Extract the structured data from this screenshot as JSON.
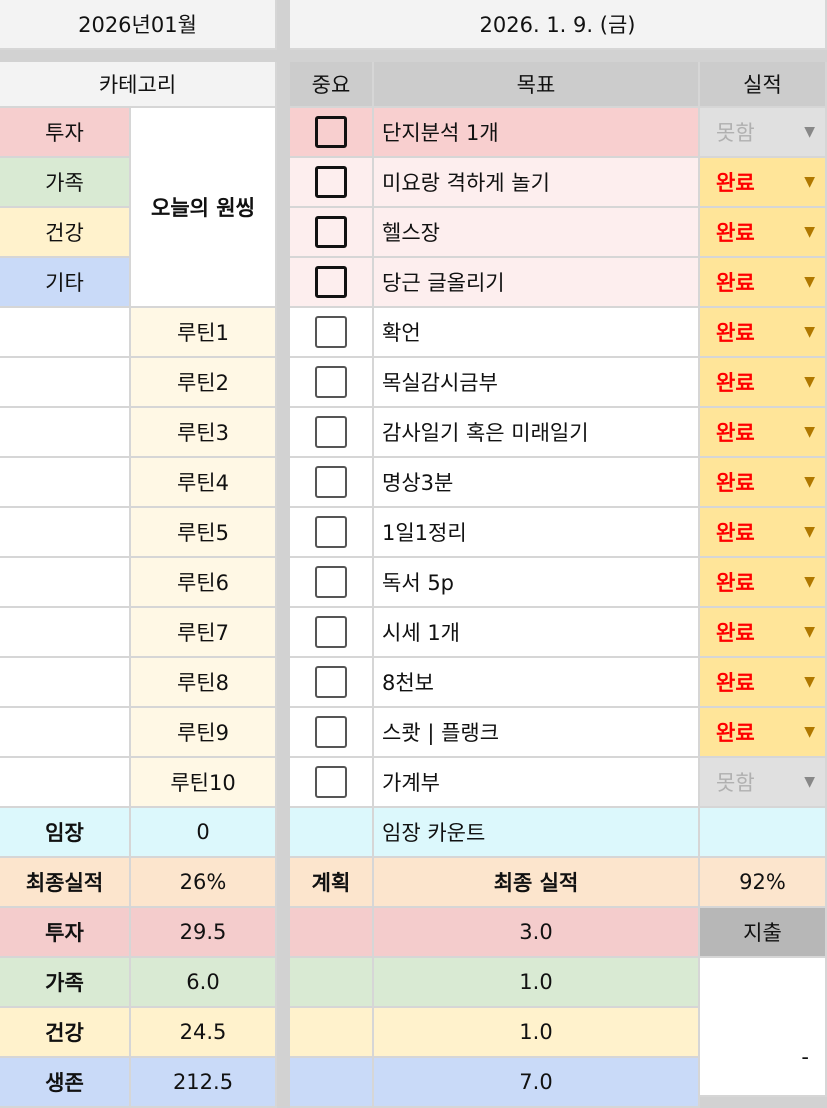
{
  "header": {
    "month": "2026년01월",
    "date": "2026. 1. 9. (금)"
  },
  "columns": {
    "category": "카테고리",
    "important": "중요",
    "goal": "목표",
    "result": "실적"
  },
  "categories": [
    {
      "label": "투자",
      "color": "#f6cece"
    },
    {
      "label": "가족",
      "color": "#d9ead3"
    },
    {
      "label": "건강",
      "color": "#fff2cc"
    },
    {
      "label": "기타",
      "color": "#c9daf8"
    }
  ],
  "today_wish": "오늘의 원씽",
  "goals": [
    {
      "tag": "",
      "goal": "단지분석 1개",
      "important": true,
      "status": "못함",
      "bg": "#f8cfcf"
    },
    {
      "tag": "",
      "goal": "미요랑 격하게 놀기",
      "important": true,
      "status": "완료",
      "bg": "#fdeeee"
    },
    {
      "tag": "",
      "goal": "헬스장",
      "important": true,
      "status": "완료",
      "bg": "#fdeeee"
    },
    {
      "tag": "",
      "goal": "당근 글올리기",
      "important": true,
      "status": "완료",
      "bg": "#fdeeee"
    },
    {
      "tag": "루틴1",
      "goal": " 확언",
      "important": false,
      "status": "완료",
      "bg": "#ffffff"
    },
    {
      "tag": "루틴2",
      "goal": "목실감시금부",
      "important": false,
      "status": "완료",
      "bg": "#ffffff"
    },
    {
      "tag": "루틴3",
      "goal": "감사일기 혹은 미래일기",
      "important": false,
      "status": "완료",
      "bg": "#ffffff"
    },
    {
      "tag": "루틴4",
      "goal": "명상3분",
      "important": false,
      "status": "완료",
      "bg": "#ffffff"
    },
    {
      "tag": "루틴5",
      "goal": "1일1정리",
      "important": false,
      "status": "완료",
      "bg": "#ffffff"
    },
    {
      "tag": "루틴6",
      "goal": "독서 5p",
      "important": false,
      "status": "완료",
      "bg": "#ffffff"
    },
    {
      "tag": "루틴7",
      "goal": "시세 1개",
      "important": false,
      "status": "완료",
      "bg": "#ffffff"
    },
    {
      "tag": "루틴8",
      "goal": "8천보",
      "important": false,
      "status": "완료",
      "bg": "#ffffff"
    },
    {
      "tag": "루틴9",
      "goal": "스쾃 | 플랭크",
      "important": false,
      "status": "완료",
      "bg": "#ffffff"
    },
    {
      "tag": "루틴10",
      "goal": "가계부",
      "important": false,
      "status": "못함",
      "bg": "#ffffff"
    }
  ],
  "imjang": {
    "label": "임장",
    "value": "0",
    "count_label": "임장 카운트"
  },
  "final": {
    "label": "최종실적",
    "value": "26%",
    "plan": "계획",
    "result_label": "최종 실적",
    "result_value": "92%"
  },
  "summary": [
    {
      "label": "투자",
      "value": "29.5",
      "plan": "3.0",
      "color": "#f4cccc"
    },
    {
      "label": "가족",
      "value": "6.0",
      "plan": "1.0",
      "color": "#d9ead3"
    },
    {
      "label": "건강",
      "value": "24.5",
      "plan": "1.0",
      "color": "#fff2cc"
    },
    {
      "label": "생존",
      "value": "212.5",
      "plan": "7.0",
      "color": "#c9daf8"
    }
  ],
  "expense": {
    "label": "지출",
    "value": "-"
  },
  "status_colors": {
    "완료": "#ffe599",
    "못함": "#e0e0e0"
  }
}
